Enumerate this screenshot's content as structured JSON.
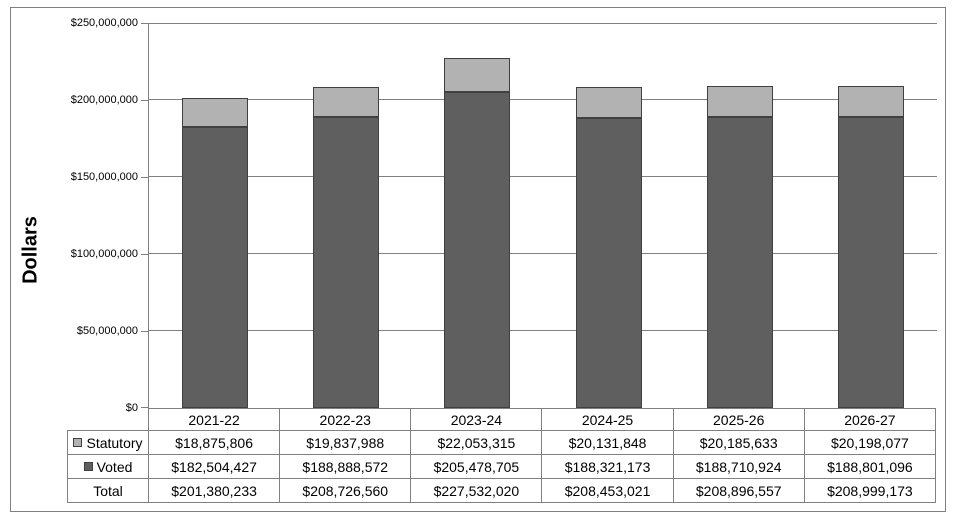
{
  "figure": {
    "title": "",
    "y_axis_title": "Dollars"
  },
  "chart_data": {
    "type": "bar",
    "stacked": true,
    "title": "",
    "xlabel": "",
    "ylabel": "Dollars",
    "ylim": [
      0,
      250000000
    ],
    "grid": true,
    "legend_position": "table-left",
    "categories": [
      "2021-22",
      "2022-23",
      "2023-24",
      "2024-25",
      "2025-26",
      "2026-27"
    ],
    "series": [
      {
        "name": "Voted",
        "color": "#5f5f5f",
        "stack_position": "bottom",
        "values": [
          182504427,
          188888572,
          205478705,
          188321173,
          188710924,
          188801096
        ]
      },
      {
        "name": "Statutory",
        "color": "#b2b2b2",
        "stack_position": "top",
        "values": [
          18875806,
          19837988,
          22053315,
          20131848,
          20185633,
          20198077
        ]
      }
    ],
    "totals": [
      201380233,
      208726560,
      227532020,
      208453021,
      208896557,
      208999173
    ],
    "yticks": [
      {
        "value": 0,
        "label": "$0"
      },
      {
        "value": 50000000,
        "label": "$50,000,000"
      },
      {
        "value": 100000000,
        "label": "$100,000,000"
      },
      {
        "value": 150000000,
        "label": "$150,000,000"
      },
      {
        "value": 200000000,
        "label": "$200,000,000"
      },
      {
        "value": 250000000,
        "label": "$250,000,000"
      }
    ]
  },
  "table": {
    "columns": [
      "2021-22",
      "2022-23",
      "2023-24",
      "2024-25",
      "2025-26",
      "2026-27"
    ],
    "rows": [
      {
        "label": "Statutory",
        "swatch_color": "#b2b2b2",
        "values": [
          "$18,875,806",
          "$19,837,988",
          "$22,053,315",
          "$20,131,848",
          "$20,185,633",
          "$20,198,077"
        ]
      },
      {
        "label": "Voted",
        "swatch_color": "#5f5f5f",
        "values": [
          "$182,504,427",
          "$188,888,572",
          "$205,478,705",
          "$188,321,173",
          "$188,710,924",
          "$188,801,096"
        ]
      },
      {
        "label": "Total",
        "swatch_color": null,
        "values": [
          "$201,380,233",
          "$208,726,560",
          "$227,532,020",
          "$208,453,021",
          "$208,896,557",
          "$208,999,173"
        ]
      }
    ]
  },
  "colors": {
    "voted_fill": "#5f5f5f",
    "statutory_fill": "#b2b2b2",
    "bar_border": "#404040",
    "gridline": "#808080",
    "table_border": "#808080",
    "figure_border": "#808080",
    "text": "#000000",
    "background": "#ffffff"
  }
}
